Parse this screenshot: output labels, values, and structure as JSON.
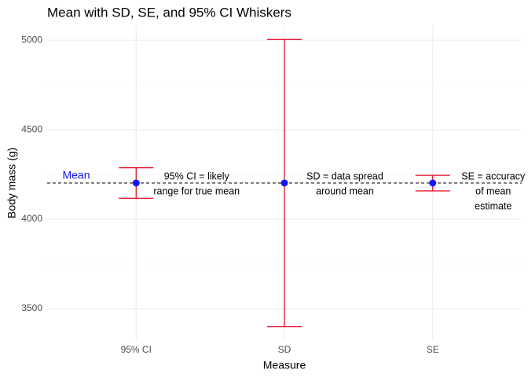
{
  "chart_data": {
    "type": "errorbar",
    "title": "Mean with SD, SE, and 95% CI Whiskers",
    "xlabel": "Measure",
    "ylabel": "Body mass (g)",
    "categories": [
      "95% CI",
      "SD",
      "SE"
    ],
    "values": [
      4202,
      4202,
      4202
    ],
    "lower": [
      4117,
      3400,
      4158
    ],
    "upper": [
      4287,
      5004,
      4245
    ],
    "point_color": "#1414ff",
    "whisker_color": "#e0001b",
    "hline": 4202,
    "hline_label": "Mean",
    "hline_label_color": "#1414ff",
    "annotations": [
      {
        "lines": [
          "95% CI = likely",
          "range for true mean"
        ]
      },
      {
        "lines": [
          "SD = data spread",
          "around mean"
        ]
      },
      {
        "lines": [
          "SE = accuracy",
          "of mean",
          "estimate"
        ]
      }
    ],
    "ylim": [
      3320,
      5084
    ],
    "yticks": [
      3500,
      4000,
      4500,
      5000
    ],
    "minor_yticks": [
      3750,
      4250,
      4750
    ],
    "grid": true
  }
}
